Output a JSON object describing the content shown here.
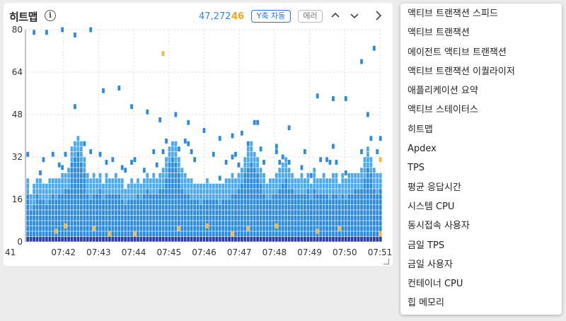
{
  "panel": {
    "title": "히트맵",
    "info_glyph": "i",
    "count_total": "47,272",
    "count_error": "46",
    "yaxis_button": "Y축 자동",
    "error_button": "에러",
    "icons": [
      "chevron-up-icon",
      "chevron-down-icon",
      "chevron-right-icon"
    ]
  },
  "colors": {
    "bar_blue": "#2b8ae0",
    "light_blue": "#4aa8f0",
    "error_orange": "#f5b82e",
    "baseline_navy": "#2b3ea8",
    "count_blue": "#2b8ae0",
    "count_orange": "#f5a623"
  },
  "chart_data": {
    "type": "heatmap",
    "ylim": [
      0,
      80
    ],
    "y_ticks": [
      "0",
      "16",
      "32",
      "48",
      "64",
      "80"
    ],
    "x_ticks": [
      "41",
      "07:42",
      "07:43",
      "07:44",
      "07:45",
      "07:46",
      "07:47",
      "07:48",
      "07:49",
      "07:50",
      "07:51"
    ],
    "column_tops": [
      24,
      18,
      21,
      24,
      23,
      22,
      21,
      23,
      24,
      23,
      24,
      25,
      26,
      27,
      36,
      38,
      40,
      37,
      32,
      25,
      23,
      25,
      24,
      26,
      22,
      25,
      24,
      24,
      25,
      24,
      23,
      20,
      22,
      23,
      22,
      24,
      22,
      24,
      26,
      24,
      25,
      24,
      26,
      27,
      31,
      36,
      38,
      37,
      32,
      27,
      25,
      24,
      23,
      22,
      22,
      21,
      22,
      23,
      22,
      22,
      22,
      21,
      22,
      23,
      23,
      25,
      24,
      26,
      28,
      32,
      35,
      37,
      34,
      32,
      28,
      25,
      22,
      23,
      24,
      25,
      27,
      29,
      31,
      27,
      26,
      24,
      24,
      25,
      24,
      26,
      22,
      27,
      24,
      24,
      25,
      24,
      23,
      25,
      25,
      22,
      25,
      23,
      25,
      25,
      26,
      26,
      27,
      31,
      35,
      32,
      27,
      25,
      26
    ],
    "scatter_top": [
      78,
      78,
      79,
      77,
      79,
      56,
      57,
      50,
      48,
      45,
      47,
      44,
      41,
      38,
      39,
      36,
      34,
      33,
      42,
      33,
      54,
      53,
      53,
      67,
      72
    ],
    "error_marks": [
      [
        "07:42",
        3
      ],
      [
        "07:42",
        5
      ],
      [
        "07:43",
        2
      ],
      [
        "07:43",
        4
      ],
      [
        "07:44",
        2
      ],
      [
        "07:45",
        4
      ],
      [
        "07:45",
        70
      ],
      [
        "07:46",
        5
      ],
      [
        "07:47",
        4
      ],
      [
        "07:47",
        2
      ],
      [
        "07:48",
        5
      ],
      [
        "07:49",
        3
      ],
      [
        "07:50",
        4
      ],
      [
        "07:51",
        2
      ],
      [
        "07:51",
        30
      ]
    ]
  },
  "menu": {
    "items": [
      "액티브 트랜잭션 스피드",
      "액티브 트랜잭션",
      "에이전트 액티브 트랜잭션",
      "액티브 트랜잭션 이퀄라이저",
      "애플리케이션 요약",
      "액티브 스테이터스",
      "히트맵",
      "Apdex",
      "TPS",
      "평균 응답시간",
      "시스템 CPU",
      "동시접속 사용자",
      "금일 TPS",
      "금일 사용자",
      "컨테이너 CPU",
      "힙 메모리"
    ]
  }
}
